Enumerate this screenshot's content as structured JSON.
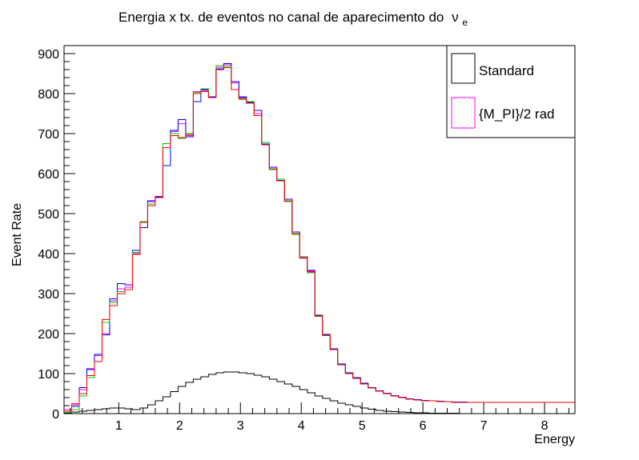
{
  "chart_data": {
    "type": "histogram-step",
    "title": "Energia x tx. de eventos no canal de aparecimento do",
    "title_symbol": "ν",
    "title_subscript": "e",
    "xlabel": "Energy",
    "ylabel": "Event Rate",
    "xlim": [
      0.1,
      8.5
    ],
    "ylim": [
      0,
      920
    ],
    "x_ticks": [
      1,
      2,
      3,
      4,
      5,
      6,
      7,
      8
    ],
    "y_ticks": [
      0,
      100,
      200,
      300,
      400,
      500,
      600,
      700,
      800,
      900
    ],
    "bin_edges": [
      0.1,
      0.225,
      0.35,
      0.475,
      0.6,
      0.725,
      0.85,
      0.975,
      1.1,
      1.225,
      1.35,
      1.475,
      1.6,
      1.725,
      1.85,
      1.975,
      2.1,
      2.225,
      2.35,
      2.475,
      2.6,
      2.725,
      2.85,
      2.975,
      3.1,
      3.225,
      3.35,
      3.475,
      3.6,
      3.725,
      3.85,
      3.975,
      4.1,
      4.225,
      4.35,
      4.475,
      4.6,
      4.725,
      4.85,
      4.975,
      5.1,
      5.225,
      5.35,
      5.475,
      5.6,
      5.725,
      5.85,
      5.975,
      6.1,
      6.225,
      6.35,
      6.475,
      6.6,
      6.725,
      6.85,
      6.975,
      7.1,
      7.225,
      7.35,
      7.475,
      7.6,
      7.725,
      7.85,
      7.975,
      8.1,
      8.225,
      8.5
    ],
    "series": [
      {
        "name": "Standard",
        "color": "#000000",
        "values": [
          2,
          4,
          6,
          8,
          10,
          12,
          14,
          14,
          12,
          10,
          14,
          22,
          32,
          42,
          55,
          68,
          78,
          86,
          92,
          98,
          102,
          104,
          104,
          102,
          100,
          96,
          92,
          86,
          80,
          74,
          68,
          60,
          52,
          44,
          38,
          32,
          26,
          22,
          18,
          14,
          11,
          8,
          6,
          5,
          4,
          3,
          2,
          2,
          1,
          1,
          1,
          1,
          0,
          0,
          0,
          0,
          0,
          0,
          0,
          0,
          0,
          0,
          0,
          0,
          0,
          0
        ]
      },
      {
        "name": "{M_PI}/2 rad",
        "color": "#ff00ff",
        "values": [
          10,
          25,
          60,
          110,
          145,
          200,
          282,
          312,
          316,
          400,
          478,
          530,
          543,
          665,
          705,
          725,
          695,
          805,
          808,
          790,
          866,
          872,
          827,
          790,
          776,
          750,
          672,
          612,
          582,
          532,
          450,
          388,
          354,
          244,
          196,
          160,
          122,
          100,
          88,
          74,
          64,
          56,
          50,
          44,
          40,
          36,
          34,
          32,
          32,
          30,
          30,
          28,
          28,
          28,
          28,
          28,
          28,
          28,
          28,
          28,
          28,
          28,
          28,
          28,
          28,
          28
        ]
      },
      {
        "name": "",
        "color": "#0000ff",
        "values": [
          6,
          18,
          65,
          112,
          148,
          197,
          287,
          325,
          322,
          408,
          465,
          532,
          542,
          620,
          708,
          735,
          692,
          780,
          810,
          792,
          862,
          875,
          830,
          792,
          778,
          758,
          674,
          616,
          583,
          536,
          454,
          392,
          358,
          246,
          198,
          162,
          124,
          102,
          90,
          76,
          65,
          57,
          51,
          45,
          41,
          37,
          35,
          33,
          32,
          31,
          30,
          29,
          29,
          28,
          28,
          28,
          28,
          28,
          28,
          28,
          28,
          28,
          28,
          28,
          28,
          28
        ]
      },
      {
        "name": "",
        "color": "#00cc00",
        "values": [
          3,
          10,
          44,
          90,
          130,
          228,
          278,
          305,
          310,
          403,
          480,
          524,
          540,
          675,
          700,
          688,
          700,
          803,
          812,
          790,
          870,
          868,
          810,
          788,
          780,
          745,
          678,
          610,
          586,
          530,
          448,
          390,
          352,
          243,
          195,
          160,
          122,
          100,
          88,
          74,
          64,
          56,
          50,
          44,
          40,
          36,
          34,
          32,
          32,
          30,
          30,
          28,
          28,
          28,
          28,
          28,
          28,
          28,
          28,
          28,
          28,
          28,
          28,
          28,
          28,
          28
        ]
      },
      {
        "name": "",
        "color": "#ff0000",
        "values": [
          6,
          22,
          50,
          95,
          130,
          235,
          270,
          300,
          310,
          398,
          478,
          520,
          540,
          665,
          695,
          690,
          698,
          800,
          805,
          790,
          860,
          865,
          810,
          786,
          776,
          745,
          672,
          612,
          582,
          532,
          450,
          392,
          356,
          244,
          196,
          160,
          122,
          100,
          88,
          74,
          64,
          56,
          50,
          44,
          40,
          36,
          34,
          32,
          32,
          30,
          30,
          28,
          28,
          28,
          28,
          28,
          28,
          28,
          28,
          28,
          28,
          28,
          28,
          28,
          28,
          28
        ]
      }
    ],
    "legend": {
      "placement": "top-right",
      "entries": [
        {
          "label": "Standard",
          "color": "#000000"
        },
        {
          "label": "{M_PI}/2 rad",
          "color": "#ff00ff"
        }
      ]
    },
    "grid": false
  }
}
